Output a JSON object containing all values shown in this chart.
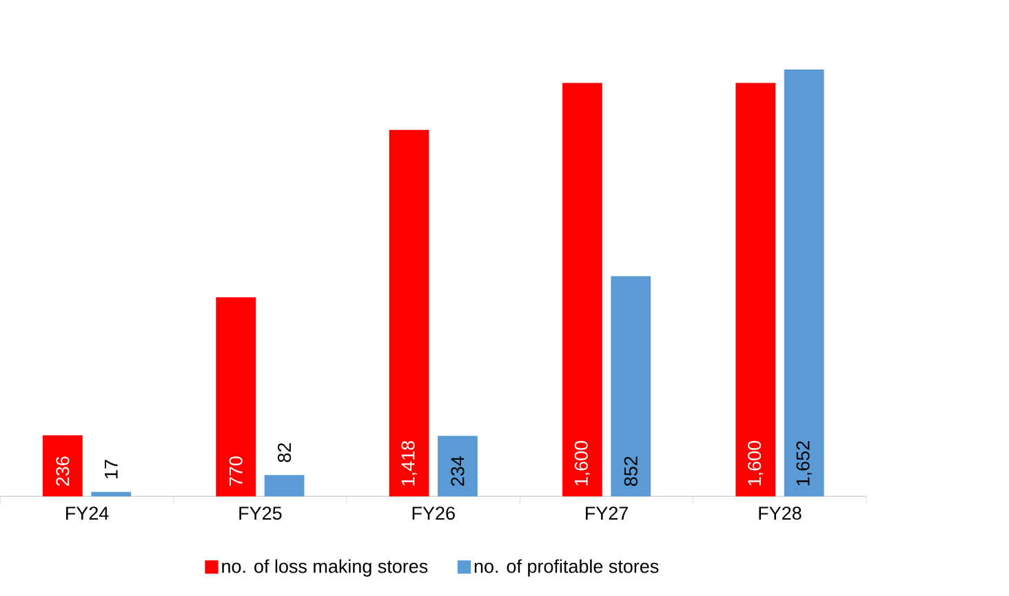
{
  "chart_data": {
    "type": "bar",
    "categories": [
      "FY24",
      "FY25",
      "FY26",
      "FY27",
      "FY28"
    ],
    "series": [
      {
        "name": "no. of loss making stores",
        "color": "#ff0000",
        "values": [
          236,
          770,
          1418,
          1600,
          1600
        ],
        "value_labels": [
          "236",
          "770",
          "1,418",
          "1,600",
          "1,600"
        ]
      },
      {
        "name": "no. of profitable stores",
        "color": "#5b9bd5",
        "values": [
          17,
          82,
          234,
          852,
          1652
        ],
        "value_labels": [
          "17",
          "82",
          "234",
          "852",
          "1,652"
        ]
      }
    ],
    "legend": "bottom"
  }
}
